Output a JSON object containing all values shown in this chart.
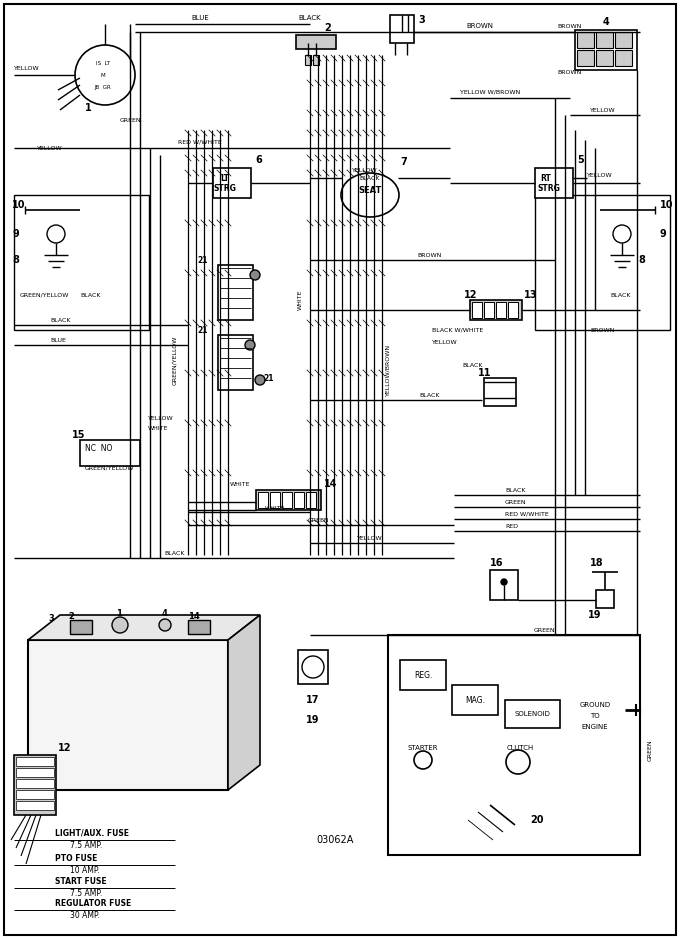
{
  "bg_color": "#ffffff",
  "diagram_code": "03062A",
  "fuse_labels": [
    [
      "LIGHT/AUX. FUSE",
      "7.5 AMP."
    ],
    [
      "PTO FUSE",
      "10 AMP."
    ],
    [
      "START FUSE",
      "7.5 AMP."
    ],
    [
      "REGULATOR FUSE",
      "30 AMP."
    ]
  ]
}
